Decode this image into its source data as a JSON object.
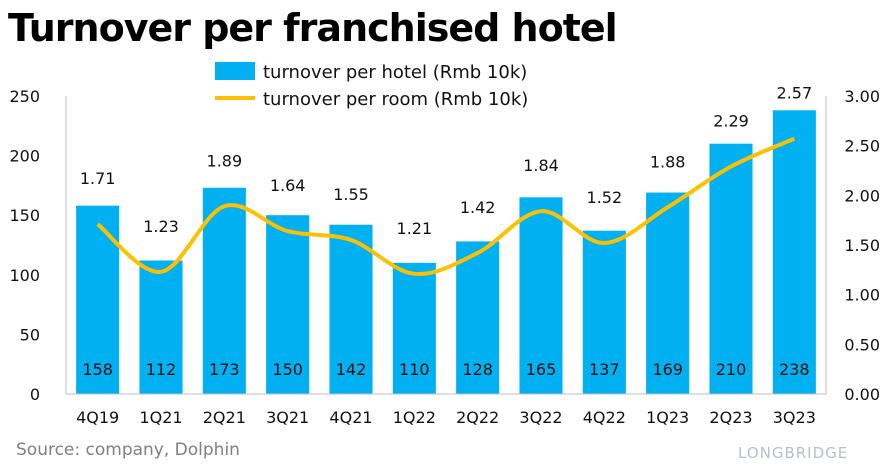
{
  "title": "Turnover per franchised hotel",
  "source": "Source: company, Dolphin",
  "brand": "LONGBRIDGE",
  "colors": {
    "bar": "#00b0f0",
    "line": "#ffc000"
  },
  "chart_data": {
    "type": "bar",
    "categories": [
      "4Q19",
      "1Q21",
      "2Q21",
      "3Q21",
      "4Q21",
      "1Q22",
      "2Q22",
      "3Q22",
      "4Q22",
      "1Q23",
      "2Q23",
      "3Q23"
    ],
    "series": [
      {
        "name": "turnover per hotel (Rmb 10k)",
        "type": "bar",
        "axis": "left",
        "values": [
          158,
          112,
          173,
          150,
          142,
          110,
          128,
          165,
          137,
          169,
          210,
          238
        ]
      },
      {
        "name": "turnover per room (Rmb 10k)",
        "type": "line",
        "axis": "right",
        "values": [
          1.71,
          1.23,
          1.89,
          1.64,
          1.55,
          1.21,
          1.42,
          1.84,
          1.52,
          1.88,
          2.29,
          2.57
        ]
      }
    ],
    "y_left": {
      "min": 0,
      "max": 250,
      "ticks": [
        "0",
        "50",
        "100",
        "150",
        "200",
        "250"
      ]
    },
    "y_right": {
      "min": 0,
      "max": 3,
      "ticks": [
        "0.00",
        "0.50",
        "1.00",
        "1.50",
        "2.00",
        "2.50",
        "3.00"
      ]
    },
    "grid": false,
    "legend_position": "top-center"
  }
}
